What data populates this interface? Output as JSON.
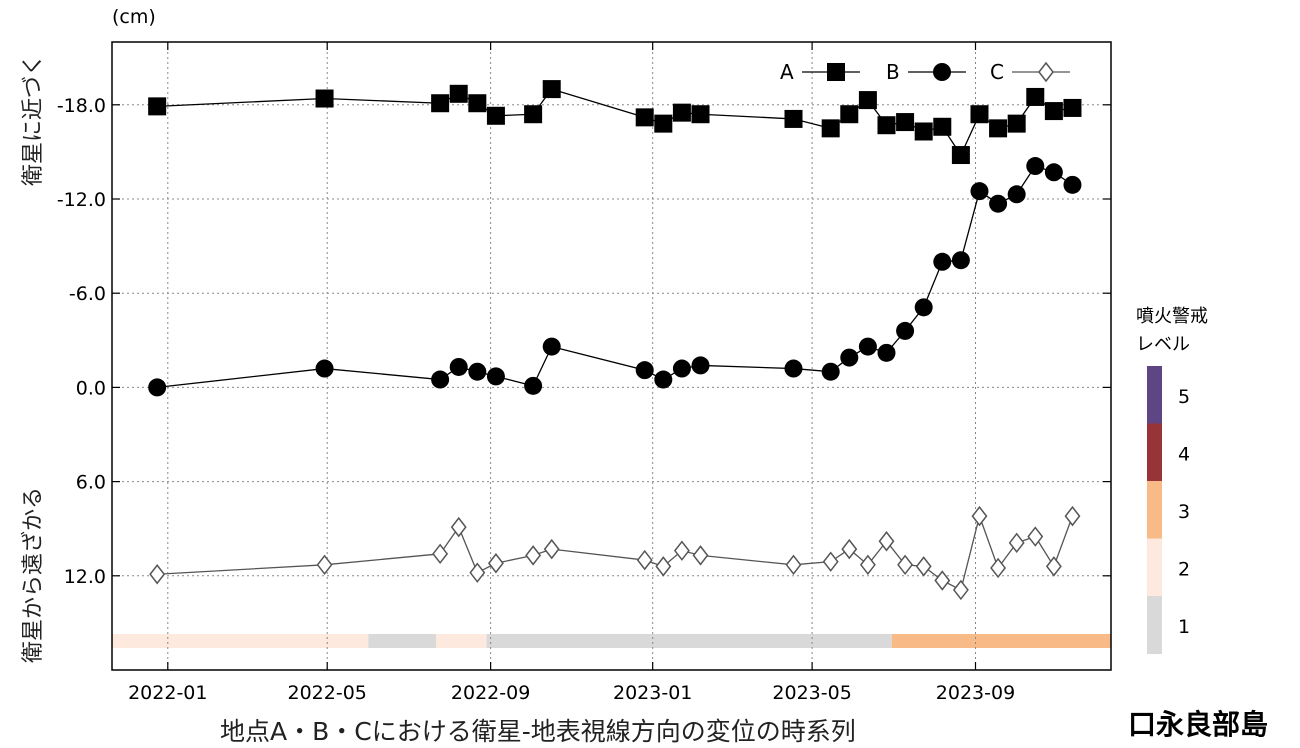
{
  "chart_data": {
    "type": "line",
    "title": "地点A・B・Cにおける衛星-地表視線方向の変位の時系列",
    "location": "口永良部島",
    "unit_label": "(cm)",
    "ylabel_top": "衛星に近づく",
    "ylabel_bottom": "衛星から遠ざかる",
    "xlim": [
      "2021-11-20",
      "2023-12-12"
    ],
    "ylim": [
      -22,
      18
    ],
    "y_tick_values": [
      -18,
      -12,
      -6,
      0,
      6,
      12
    ],
    "y_tick_labels": [
      "-18.0",
      "-12.0",
      "-6.0",
      "0.0",
      "6.0",
      "12.0"
    ],
    "x_ticks": [
      {
        "date": "2022-01-01",
        "label": "2022-01"
      },
      {
        "date": "2022-05-01",
        "label": "2022-05"
      },
      {
        "date": "2022-09-01",
        "label": "2022-09"
      },
      {
        "date": "2023-01-01",
        "label": "2023-01"
      },
      {
        "date": "2023-05-01",
        "label": "2023-05"
      },
      {
        "date": "2023-09-01",
        "label": "2023-09"
      }
    ],
    "grid": true,
    "legend_position": "top-right",
    "series": [
      {
        "name": "A",
        "marker": "square",
        "points": [
          [
            "2021-12-24",
            -17.9
          ],
          [
            "2022-04-29",
            -18.4
          ],
          [
            "2022-07-25",
            -18.1
          ],
          [
            "2022-08-08",
            -18.7
          ],
          [
            "2022-08-22",
            -18.1
          ],
          [
            "2022-09-05",
            -17.3
          ],
          [
            "2022-10-03",
            -17.4
          ],
          [
            "2022-10-17",
            -19.0
          ],
          [
            "2022-12-26",
            -17.2
          ],
          [
            "2023-01-09",
            -16.8
          ],
          [
            "2023-01-23",
            -17.5
          ],
          [
            "2023-02-06",
            -17.4
          ],
          [
            "2023-04-17",
            -17.1
          ],
          [
            "2023-05-15",
            -16.5
          ],
          [
            "2023-05-29",
            -17.4
          ],
          [
            "2023-06-12",
            -18.3
          ],
          [
            "2023-06-26",
            -16.7
          ],
          [
            "2023-07-10",
            -16.9
          ],
          [
            "2023-07-24",
            -16.3
          ],
          [
            "2023-08-07",
            -16.6
          ],
          [
            "2023-08-21",
            -14.8
          ],
          [
            "2023-09-04",
            -17.4
          ],
          [
            "2023-09-18",
            -16.5
          ],
          [
            "2023-10-02",
            -16.8
          ],
          [
            "2023-10-16",
            -18.5
          ],
          [
            "2023-10-30",
            -17.6
          ],
          [
            "2023-11-13",
            -17.8
          ]
        ]
      },
      {
        "name": "B",
        "marker": "circle",
        "points": [
          [
            "2021-12-24",
            0.0
          ],
          [
            "2022-04-29",
            -1.2
          ],
          [
            "2022-07-25",
            -0.5
          ],
          [
            "2022-08-08",
            -1.3
          ],
          [
            "2022-08-22",
            -1.0
          ],
          [
            "2022-09-05",
            -0.7
          ],
          [
            "2022-10-03",
            -0.1
          ],
          [
            "2022-10-17",
            -2.6
          ],
          [
            "2022-12-26",
            -1.1
          ],
          [
            "2023-01-09",
            -0.5
          ],
          [
            "2023-01-23",
            -1.2
          ],
          [
            "2023-02-06",
            -1.4
          ],
          [
            "2023-04-17",
            -1.2
          ],
          [
            "2023-05-15",
            -1.0
          ],
          [
            "2023-05-29",
            -1.9
          ],
          [
            "2023-06-12",
            -2.6
          ],
          [
            "2023-06-26",
            -2.2
          ],
          [
            "2023-07-10",
            -3.6
          ],
          [
            "2023-07-24",
            -5.1
          ],
          [
            "2023-08-07",
            -8.0
          ],
          [
            "2023-08-21",
            -8.1
          ],
          [
            "2023-09-04",
            -12.5
          ],
          [
            "2023-09-18",
            -11.7
          ],
          [
            "2023-10-02",
            -12.3
          ],
          [
            "2023-10-16",
            -14.1
          ],
          [
            "2023-10-30",
            -13.7
          ],
          [
            "2023-11-13",
            -12.9
          ]
        ]
      },
      {
        "name": "C",
        "marker": "diamond",
        "points": [
          [
            "2021-12-24",
            11.9
          ],
          [
            "2022-04-29",
            11.3
          ],
          [
            "2022-07-25",
            10.6
          ],
          [
            "2022-08-08",
            8.9
          ],
          [
            "2022-08-22",
            11.8
          ],
          [
            "2022-09-05",
            11.2
          ],
          [
            "2022-10-03",
            10.7
          ],
          [
            "2022-10-17",
            10.3
          ],
          [
            "2022-12-26",
            11.0
          ],
          [
            "2023-01-09",
            11.4
          ],
          [
            "2023-01-23",
            10.4
          ],
          [
            "2023-02-06",
            10.7
          ],
          [
            "2023-04-17",
            11.3
          ],
          [
            "2023-05-15",
            11.1
          ],
          [
            "2023-05-29",
            10.3
          ],
          [
            "2023-06-12",
            11.3
          ],
          [
            "2023-06-26",
            9.8
          ],
          [
            "2023-07-10",
            11.3
          ],
          [
            "2023-07-24",
            11.4
          ],
          [
            "2023-08-07",
            12.3
          ],
          [
            "2023-08-21",
            12.9
          ],
          [
            "2023-09-04",
            8.2
          ],
          [
            "2023-09-18",
            11.5
          ],
          [
            "2023-10-02",
            9.9
          ],
          [
            "2023-10-16",
            9.5
          ],
          [
            "2023-10-30",
            11.4
          ],
          [
            "2023-11-13",
            8.2
          ]
        ]
      }
    ],
    "alert_band": [
      {
        "start": "2021-11-20",
        "end": "2022-06-01",
        "level": 2
      },
      {
        "start": "2022-06-01",
        "end": "2022-07-22",
        "level": 1
      },
      {
        "start": "2022-07-22",
        "end": "2022-08-29",
        "level": 2
      },
      {
        "start": "2022-08-29",
        "end": "2023-06-30",
        "level": 1
      },
      {
        "start": "2023-06-30",
        "end": "2023-12-12",
        "level": 3
      }
    ],
    "alert_legend": {
      "title_line1": "噴火警戒",
      "title_line2": "レベル",
      "levels": [
        {
          "label": "5",
          "color": "#5e4583"
        },
        {
          "label": "4",
          "color": "#963437"
        },
        {
          "label": "3",
          "color": "#f8bb87"
        },
        {
          "label": "2",
          "color": "#fde9dd"
        },
        {
          "label": "1",
          "color": "#d9d9d9"
        }
      ]
    }
  }
}
